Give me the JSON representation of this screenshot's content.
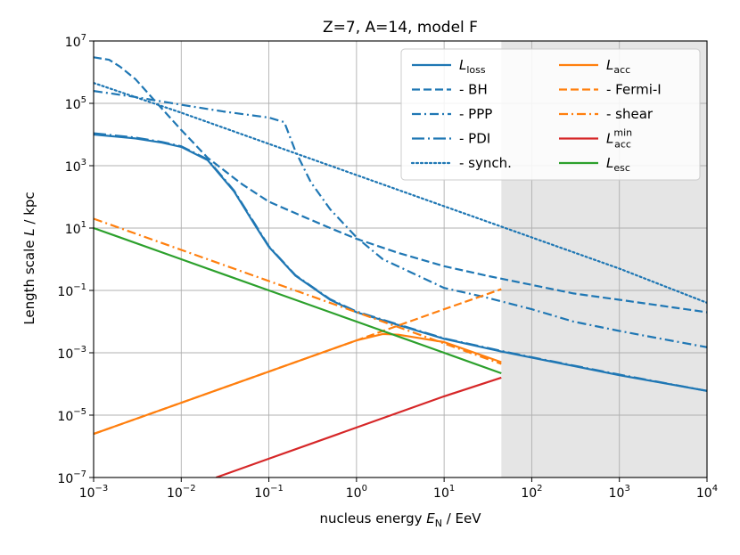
{
  "chart_data": {
    "type": "line",
    "title": "Z=7, A=14, model F",
    "xlabel": {
      "prefix": "nucleus energy ",
      "var": "E",
      "sub": "N",
      "suffix": " / EeV"
    },
    "ylabel": {
      "prefix": "Length scale ",
      "var": "L",
      "suffix": " / kpc"
    },
    "x_scale": "log",
    "y_scale": "log",
    "xlim": [
      0.001,
      10000
    ],
    "ylim": [
      1e-07,
      10000000.0
    ],
    "x_tick_exponents": [
      -3,
      -2,
      -1,
      0,
      1,
      2,
      3,
      4
    ],
    "y_tick_exponents": [
      -7,
      -5,
      -3,
      -1,
      1,
      3,
      5,
      7
    ],
    "tick_base": "10",
    "grid": true,
    "legend_location": "top-right",
    "shaded_region": {
      "x_from": 45,
      "x_to": 10000,
      "color": "#e5e5e5"
    },
    "colors": {
      "loss": "#1f77b4",
      "acc": "#ff7f0e",
      "acc_min": "#d62728",
      "esc": "#2ca02c",
      "grid": "#b0b0b0"
    },
    "series": [
      {
        "id": "loss",
        "name": "L_loss",
        "label_main": "L",
        "label_sub": "loss",
        "label_sup": "",
        "color": "#1f77b4",
        "dash": "solid",
        "legend_col": 0,
        "points": [
          [
            0.001,
            10000
          ],
          [
            0.003,
            7500
          ],
          [
            0.006,
            5500
          ],
          [
            0.01,
            4000
          ],
          [
            0.02,
            1500
          ],
          [
            0.04,
            150
          ],
          [
            0.07,
            12
          ],
          [
            0.1,
            2.5
          ],
          [
            0.2,
            0.3
          ],
          [
            0.5,
            0.05
          ],
          [
            1,
            0.02
          ],
          [
            2,
            0.011
          ],
          [
            5,
            0.005
          ],
          [
            10,
            0.0028
          ],
          [
            45,
            0.0011
          ],
          [
            100,
            0.0007
          ],
          [
            1000,
            0.00019
          ],
          [
            10000,
            6e-05
          ]
        ]
      },
      {
        "id": "bh",
        "name": "- BH",
        "label_main": "  - BH",
        "label_sub": "",
        "label_sup": "",
        "color": "#1f77b4",
        "dash": "dashed",
        "legend_col": 0,
        "points": [
          [
            0.001,
            3000000
          ],
          [
            0.0015,
            2500000
          ],
          [
            0.002,
            1500000
          ],
          [
            0.003,
            600000
          ],
          [
            0.005,
            120000
          ],
          [
            0.01,
            14000
          ],
          [
            0.02,
            1800
          ],
          [
            0.05,
            250
          ],
          [
            0.1,
            70
          ],
          [
            0.2,
            30
          ],
          [
            0.5,
            10
          ],
          [
            1,
            4.5
          ],
          [
            3,
            1.6
          ],
          [
            10,
            0.6
          ],
          [
            30,
            0.3
          ],
          [
            100,
            0.15
          ],
          [
            300,
            0.08
          ],
          [
            1000,
            0.05
          ],
          [
            10000,
            0.02
          ]
        ]
      },
      {
        "id": "ppp",
        "name": "- PPP",
        "label_main": "  - PPP",
        "label_sub": "",
        "label_sup": "",
        "color": "#1f77b4",
        "dash": "dashdot",
        "legend_col": 0,
        "points": [
          [
            0.001,
            250000
          ],
          [
            0.003,
            160000
          ],
          [
            0.01,
            90000
          ],
          [
            0.03,
            55000
          ],
          [
            0.1,
            35000
          ],
          [
            0.15,
            25000
          ],
          [
            0.2,
            3000
          ],
          [
            0.3,
            300
          ],
          [
            0.5,
            40
          ],
          [
            1,
            5
          ],
          [
            2,
            1
          ],
          [
            5,
            0.3
          ],
          [
            10,
            0.12
          ],
          [
            30,
            0.06
          ],
          [
            100,
            0.025
          ],
          [
            300,
            0.01
          ],
          [
            1000,
            0.005
          ],
          [
            3000,
            0.0028
          ],
          [
            10000,
            0.0015
          ]
        ]
      },
      {
        "id": "pdi",
        "name": "- PDI",
        "label_main": "  - PDI",
        "label_sub": "",
        "label_sup": "",
        "color": "#1f77b4",
        "dash": "longdashdot",
        "legend_col": 0,
        "points": [
          [
            0.001,
            11000
          ],
          [
            0.003,
            8000
          ],
          [
            0.006,
            5800
          ],
          [
            0.01,
            4200
          ],
          [
            0.02,
            1600
          ],
          [
            0.04,
            160
          ],
          [
            0.07,
            13
          ],
          [
            0.1,
            2.6
          ],
          [
            0.2,
            0.31
          ],
          [
            0.5,
            0.052
          ],
          [
            1,
            0.021
          ],
          [
            2,
            0.0115
          ],
          [
            5,
            0.0052
          ],
          [
            10,
            0.0029
          ],
          [
            45,
            0.00115
          ],
          [
            100,
            0.00072
          ],
          [
            1000,
            0.0002
          ],
          [
            10000,
            6e-05
          ]
        ]
      },
      {
        "id": "synch",
        "name": "- synch.",
        "label_main": "  - synch.",
        "label_sub": "",
        "label_sup": "",
        "color": "#1f77b4",
        "dash": "dotted",
        "legend_col": 0,
        "points": [
          [
            0.001,
            450000
          ],
          [
            0.01,
            50000
          ],
          [
            0.1,
            5000
          ],
          [
            1,
            500
          ],
          [
            10,
            50
          ],
          [
            100,
            5
          ],
          [
            1000,
            0.5
          ],
          [
            10000,
            0.04
          ]
        ]
      },
      {
        "id": "acc",
        "name": "L_acc",
        "label_main": "L",
        "label_sub": "acc",
        "label_sup": "",
        "color": "#ff7f0e",
        "dash": "solid",
        "legend_col": 1,
        "points": [
          [
            0.001,
            2.5e-06
          ],
          [
            0.01,
            2.5e-05
          ],
          [
            0.1,
            0.00025
          ],
          [
            1,
            0.0025
          ],
          [
            2,
            0.004
          ],
          [
            3,
            0.0038
          ],
          [
            10,
            0.0022
          ],
          [
            45,
            0.0005
          ]
        ]
      },
      {
        "id": "fermi",
        "name": "- Fermi-I",
        "label_main": "  - Fermi-I",
        "label_sub": "",
        "label_sup": "",
        "color": "#ff7f0e",
        "dash": "dashed",
        "legend_col": 1,
        "points": [
          [
            0.001,
            2.5e-06
          ],
          [
            0.01,
            2.5e-05
          ],
          [
            0.1,
            0.00025
          ],
          [
            1,
            0.0025
          ],
          [
            10,
            0.025
          ],
          [
            45,
            0.11
          ]
        ]
      },
      {
        "id": "shear",
        "name": "- shear",
        "label_main": "  - shear",
        "label_sub": "",
        "label_sup": "",
        "color": "#ff7f0e",
        "dash": "dashdot",
        "legend_col": 1,
        "points": [
          [
            0.001,
            20
          ],
          [
            0.01,
            2
          ],
          [
            0.1,
            0.2
          ],
          [
            1,
            0.02
          ],
          [
            10,
            0.002
          ],
          [
            45,
            0.00044
          ]
        ]
      },
      {
        "id": "acc_min",
        "name": "L_acc^min",
        "label_main": "L",
        "label_sub": "acc",
        "label_sup": "min",
        "color": "#d62728",
        "dash": "solid",
        "legend_col": 1,
        "points": [
          [
            0.025,
            1e-07
          ],
          [
            0.1,
            4e-07
          ],
          [
            1,
            4e-06
          ],
          [
            10,
            4e-05
          ],
          [
            45,
            0.00016
          ]
        ]
      },
      {
        "id": "esc",
        "name": "L_esc",
        "label_main": "L",
        "label_sub": "esc",
        "label_sup": "",
        "color": "#2ca02c",
        "dash": "solid",
        "legend_col": 1,
        "points": [
          [
            0.001,
            10
          ],
          [
            0.01,
            1
          ],
          [
            0.1,
            0.1
          ],
          [
            1,
            0.01
          ],
          [
            10,
            0.001
          ],
          [
            45,
            0.00022
          ]
        ]
      }
    ]
  }
}
